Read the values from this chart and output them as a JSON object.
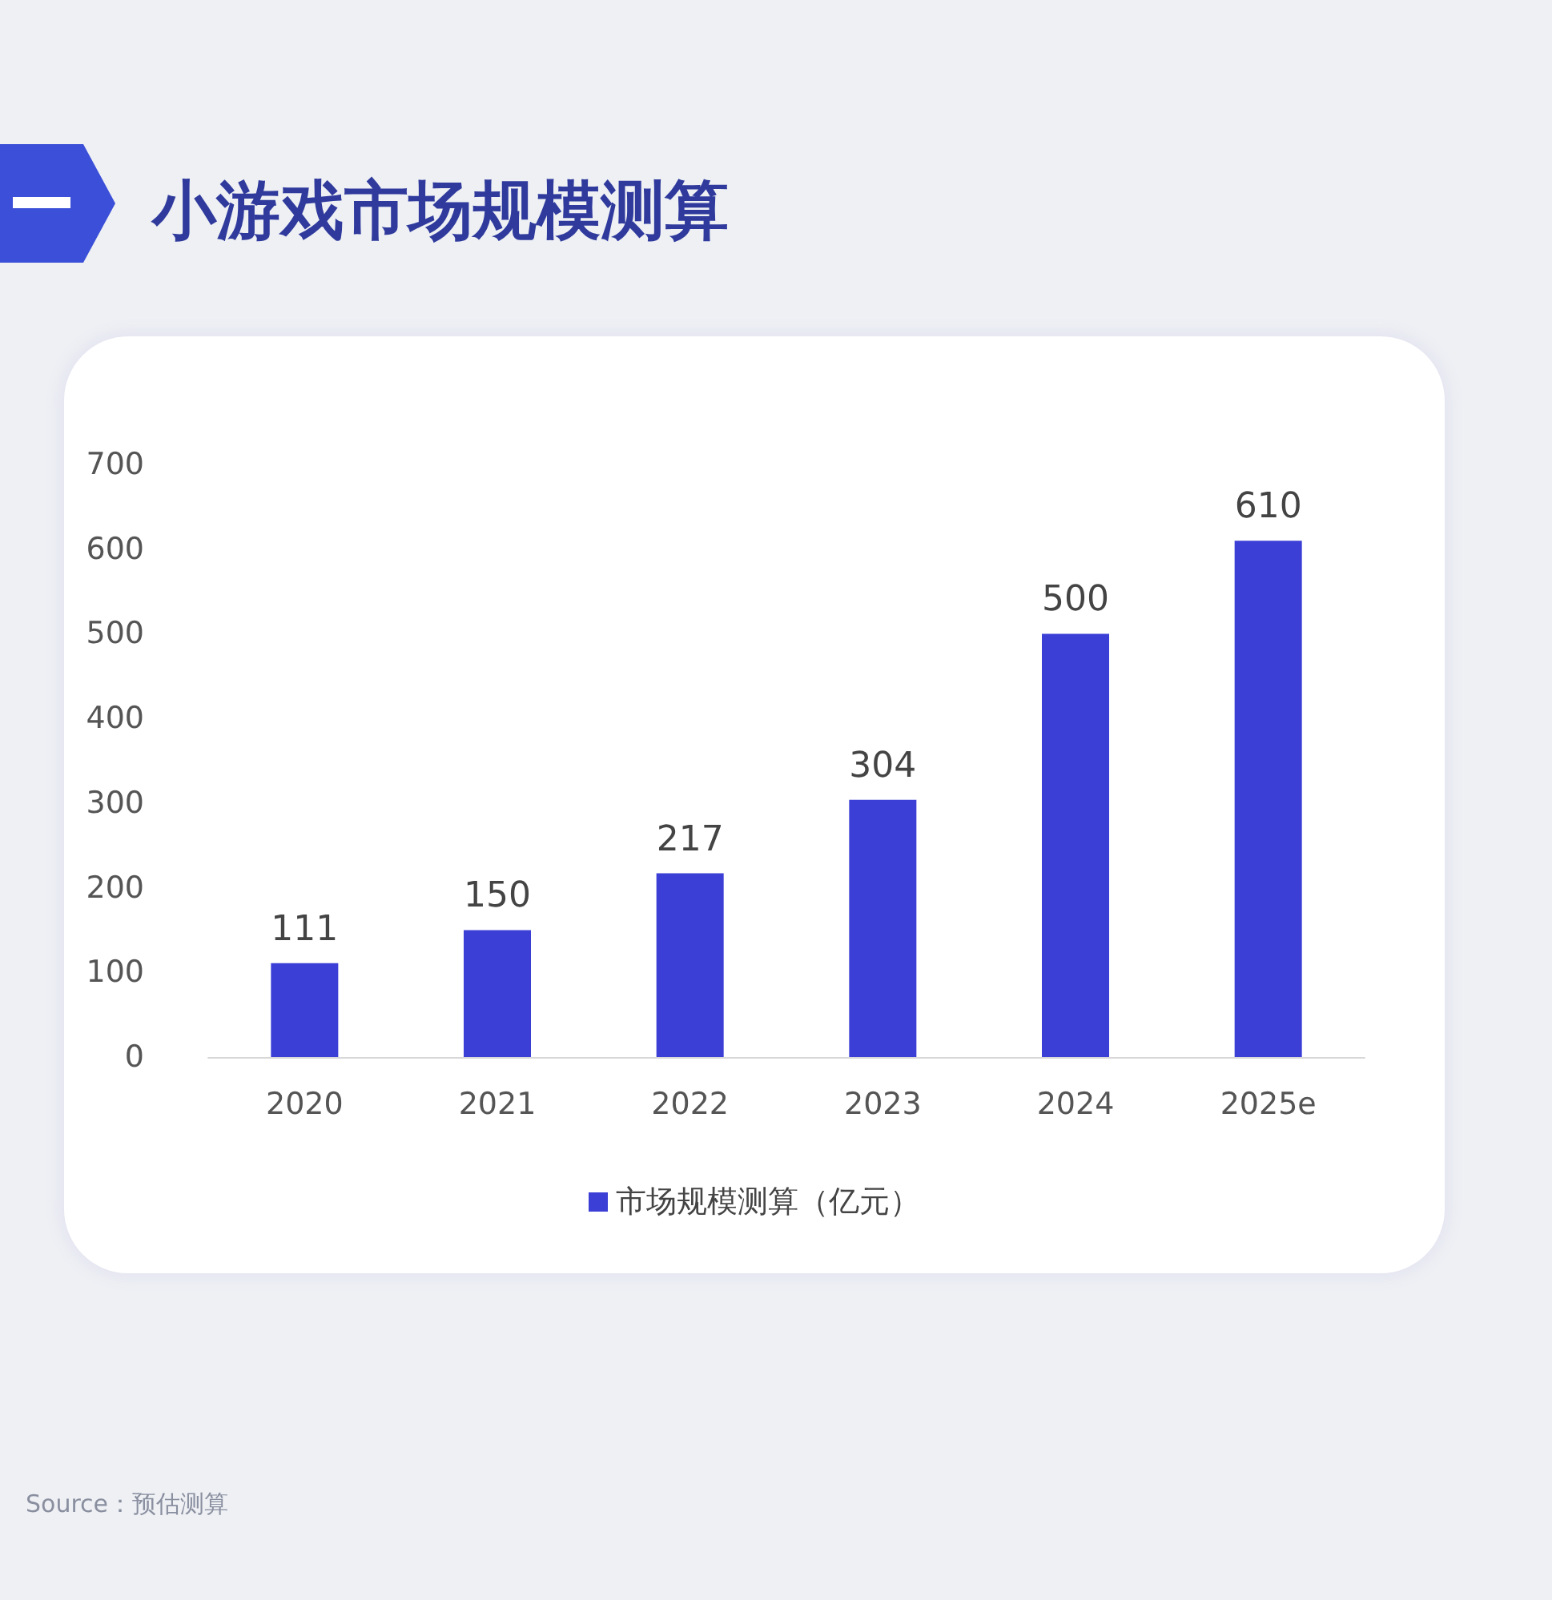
{
  "chart_data": {
    "type": "bar",
    "title": "小游戏市场规模测算",
    "categories": [
      "2020",
      "2021",
      "2022",
      "2023",
      "2024",
      "2025e"
    ],
    "series": [
      {
        "name": "市场规模测算（亿元）",
        "color": "#3b3fd6",
        "values": [
          111,
          150,
          217,
          304,
          500,
          610
        ]
      }
    ],
    "ylim": [
      0,
      700
    ],
    "yticks": [
      0,
      100,
      200,
      300,
      400,
      500,
      600,
      700
    ],
    "data_labels": true,
    "grid": false,
    "legend": "bottom",
    "annotations": [
      "Source：预估测算"
    ]
  }
}
